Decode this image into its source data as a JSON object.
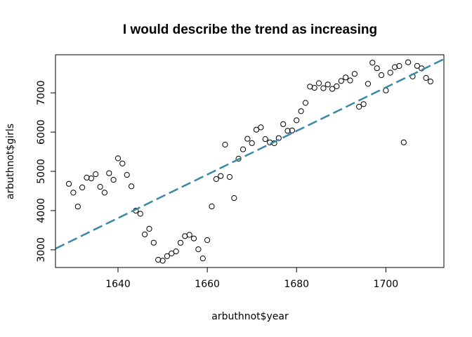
{
  "chart_data": {
    "type": "scatter",
    "title": "I would describe the trend as increasing",
    "xlabel": "arbuthnot$year",
    "ylabel": "arbuthnot$girls",
    "xlim": [
      1626,
      1713
    ],
    "ylim": [
      2550,
      7970
    ],
    "xticks": [
      1640,
      1660,
      1680,
      1700
    ],
    "yticks": [
      3000,
      4000,
      5000,
      6000,
      7000
    ],
    "grid": false,
    "points": [
      [
        1629,
        4683
      ],
      [
        1630,
        4457
      ],
      [
        1631,
        4102
      ],
      [
        1632,
        4590
      ],
      [
        1633,
        4839
      ],
      [
        1634,
        4820
      ],
      [
        1635,
        4928
      ],
      [
        1636,
        4605
      ],
      [
        1637,
        4457
      ],
      [
        1638,
        4952
      ],
      [
        1639,
        4784
      ],
      [
        1640,
        5332
      ],
      [
        1641,
        5200
      ],
      [
        1642,
        4910
      ],
      [
        1643,
        4617
      ],
      [
        1644,
        3997
      ],
      [
        1645,
        3919
      ],
      [
        1646,
        3395
      ],
      [
        1647,
        3536
      ],
      [
        1648,
        3181
      ],
      [
        1649,
        2746
      ],
      [
        1650,
        2722
      ],
      [
        1651,
        2840
      ],
      [
        1652,
        2908
      ],
      [
        1653,
        2959
      ],
      [
        1654,
        3179
      ],
      [
        1655,
        3349
      ],
      [
        1656,
        3382
      ],
      [
        1657,
        3289
      ],
      [
        1658,
        3013
      ],
      [
        1659,
        2781
      ],
      [
        1660,
        3247
      ],
      [
        1661,
        4107
      ],
      [
        1662,
        4803
      ],
      [
        1663,
        4881
      ],
      [
        1664,
        5681
      ],
      [
        1665,
        4858
      ],
      [
        1666,
        4319
      ],
      [
        1667,
        5322
      ],
      [
        1668,
        5560
      ],
      [
        1669,
        5829
      ],
      [
        1670,
        5719
      ],
      [
        1671,
        6061
      ],
      [
        1672,
        6120
      ],
      [
        1673,
        5822
      ],
      [
        1674,
        5738
      ],
      [
        1675,
        5717
      ],
      [
        1676,
        5847
      ],
      [
        1677,
        6203
      ],
      [
        1678,
        6033
      ],
      [
        1679,
        6041
      ],
      [
        1680,
        6299
      ],
      [
        1681,
        6533
      ],
      [
        1682,
        6744
      ],
      [
        1683,
        7158
      ],
      [
        1684,
        7127
      ],
      [
        1685,
        7246
      ],
      [
        1686,
        7119
      ],
      [
        1687,
        7214
      ],
      [
        1688,
        7101
      ],
      [
        1689,
        7167
      ],
      [
        1690,
        7302
      ],
      [
        1691,
        7392
      ],
      [
        1692,
        7316
      ],
      [
        1693,
        7483
      ],
      [
        1694,
        6647
      ],
      [
        1695,
        6713
      ],
      [
        1696,
        7229
      ],
      [
        1697,
        7767
      ],
      [
        1698,
        7626
      ],
      [
        1699,
        7452
      ],
      [
        1700,
        7061
      ],
      [
        1701,
        7514
      ],
      [
        1702,
        7656
      ],
      [
        1703,
        7683
      ],
      [
        1704,
        5738
      ],
      [
        1705,
        7779
      ],
      [
        1706,
        7417
      ],
      [
        1707,
        7687
      ],
      [
        1708,
        7623
      ],
      [
        1709,
        7380
      ],
      [
        1710,
        7288
      ]
    ],
    "trend_line": {
      "slope": 55.5,
      "intercept": -87212,
      "color": "#3a87a8",
      "style": "dashed"
    },
    "point_style": "open-circle"
  }
}
